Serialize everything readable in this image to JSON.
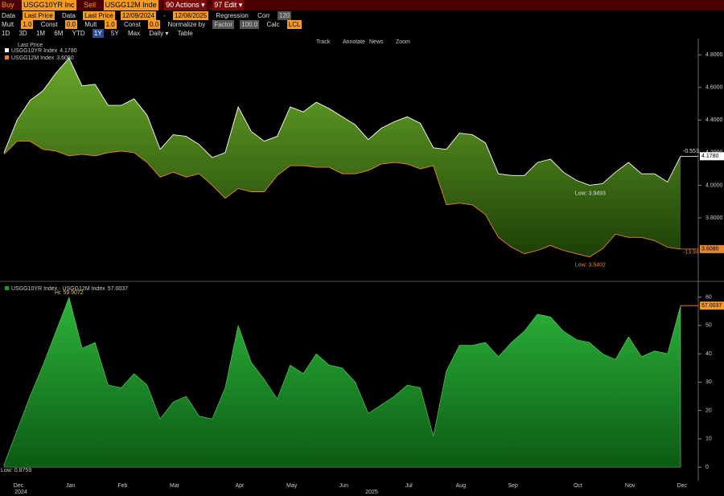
{
  "toolbar": {
    "row1": [
      "Buy",
      "USGG10YR Inc",
      "Sell",
      "USGG12M Inde",
      "90 Actions ▾",
      "97 Edit ▾"
    ],
    "row2": [
      "Data",
      "Last Price",
      "Data",
      "Last Price",
      "12/09/2024",
      "-",
      "12/08/2025",
      "Regression",
      "Corr",
      "120"
    ],
    "row3": [
      "Mult",
      "1.0",
      "Const",
      "0.0",
      "Mult",
      "1.0",
      "Const",
      "0.0",
      "Normalize by",
      "Factor",
      "100.0",
      "Calc",
      "LCL"
    ],
    "row4": [
      "1D",
      "3D",
      "1M",
      "6M",
      "YTD",
      "1Y",
      "5Y",
      "Max",
      "Daily ▾",
      "Table"
    ],
    "chart_tools": [
      "Track",
      "Annotate",
      "News",
      "Zoom"
    ]
  },
  "chart_data": [
    {
      "type": "band",
      "subtitle": "Last Price",
      "categories": [
        "Dec",
        null,
        null,
        null,
        "Jan",
        null,
        null,
        null,
        "Feb",
        null,
        null,
        null,
        "Mar",
        null,
        null,
        null,
        null,
        "Apr",
        null,
        null,
        null,
        "May",
        null,
        null,
        null,
        "Jun",
        null,
        null,
        null,
        null,
        "Jul",
        null,
        null,
        null,
        "Aug",
        null,
        null,
        null,
        "Sep",
        null,
        null,
        null,
        null,
        "Oct",
        null,
        null,
        null,
        "Nov",
        null,
        null,
        null,
        "Dec",
        null
      ],
      "series": [
        {
          "name": "USGG10YR Index",
          "color": "#ffffff",
          "last_label": "4.1780",
          "low_label": "Low: 3.9493",
          "change_label": "-0.553",
          "values": [
            4.2,
            4.4,
            4.52,
            4.58,
            4.69,
            4.78,
            4.61,
            4.62,
            4.49,
            4.49,
            4.53,
            4.43,
            4.22,
            4.31,
            4.3,
            4.25,
            4.17,
            4.2,
            4.48,
            4.33,
            4.27,
            4.3,
            4.48,
            4.45,
            4.51,
            4.47,
            4.42,
            4.37,
            4.28,
            4.35,
            4.39,
            4.42,
            4.38,
            4.23,
            4.22,
            4.32,
            4.31,
            4.26,
            4.07,
            4.06,
            4.06,
            4.14,
            4.16,
            4.08,
            4.03,
            4.0,
            4.01,
            4.08,
            4.14,
            4.07,
            4.07,
            4.02,
            4.178
          ]
        },
        {
          "name": "USGG12M Index",
          "color": "#e8862a",
          "last_label": "3.6080",
          "low_label": "Low: 3.5402",
          "change_label": "-13.94",
          "values": [
            4.19,
            4.27,
            4.27,
            4.22,
            4.21,
            4.18,
            4.19,
            4.18,
            4.2,
            4.21,
            4.2,
            4.14,
            4.05,
            4.08,
            4.05,
            4.07,
            4.0,
            3.92,
            3.98,
            3.96,
            3.96,
            4.06,
            4.12,
            4.12,
            4.11,
            4.11,
            4.07,
            4.07,
            4.09,
            4.13,
            4.14,
            4.13,
            4.1,
            4.12,
            3.88,
            3.89,
            3.88,
            3.82,
            3.68,
            3.62,
            3.58,
            3.6,
            3.63,
            3.6,
            3.58,
            3.56,
            3.61,
            3.7,
            3.68,
            3.68,
            3.66,
            3.62,
            3.608
          ]
        }
      ],
      "fill": "#4c8a16",
      "ylim": [
        3.42,
        4.9
      ],
      "yticks": [
        {
          "value": 3.8,
          "label": "3.8000"
        },
        {
          "value": 4.0,
          "label": "4.0000"
        },
        {
          "value": 4.2,
          "label": "4.2000"
        },
        {
          "value": 4.4,
          "label": "4.4000"
        },
        {
          "value": 4.6,
          "label": "4.6000"
        },
        {
          "value": 4.8,
          "label": "4.8000"
        }
      ]
    },
    {
      "type": "area",
      "categories": [
        "Dec",
        null,
        null,
        null,
        "Jan",
        null,
        null,
        null,
        "Feb",
        null,
        null,
        null,
        "Mar",
        null,
        null,
        null,
        null,
        "Apr",
        null,
        null,
        null,
        "May",
        null,
        null,
        null,
        "Jun",
        null,
        null,
        null,
        null,
        "Jul",
        null,
        null,
        null,
        "Aug",
        null,
        null,
        null,
        "Sep",
        null,
        null,
        null,
        null,
        "Oct",
        null,
        null,
        null,
        "Nov",
        null,
        null,
        null,
        "Dec",
        null
      ],
      "year_labels": [
        "2024",
        "2025"
      ],
      "series": [
        {
          "name": "USGG10YR Index - USGG12M Index",
          "color": "#1e9a2c",
          "last_label": "57.0037",
          "low_label": "Low: 0.8759",
          "high_label": "Hi: 59.9072",
          "values": [
            0.8759,
            13,
            25,
            36,
            48,
            59.9072,
            42,
            44,
            29,
            28,
            33,
            29,
            17,
            23,
            25,
            18,
            17,
            28,
            50,
            37,
            31,
            24,
            36,
            33,
            40,
            36,
            35,
            30,
            19,
            22,
            25,
            29,
            28,
            11,
            34,
            43,
            43,
            44,
            39,
            44,
            48,
            54,
            53,
            48,
            45,
            44,
            40,
            38,
            46,
            39,
            41,
            40,
            57.0037
          ]
        }
      ],
      "ylim": [
        -4.5,
        65
      ],
      "yticks": [
        0,
        10,
        20,
        30,
        40,
        50,
        60
      ]
    }
  ]
}
